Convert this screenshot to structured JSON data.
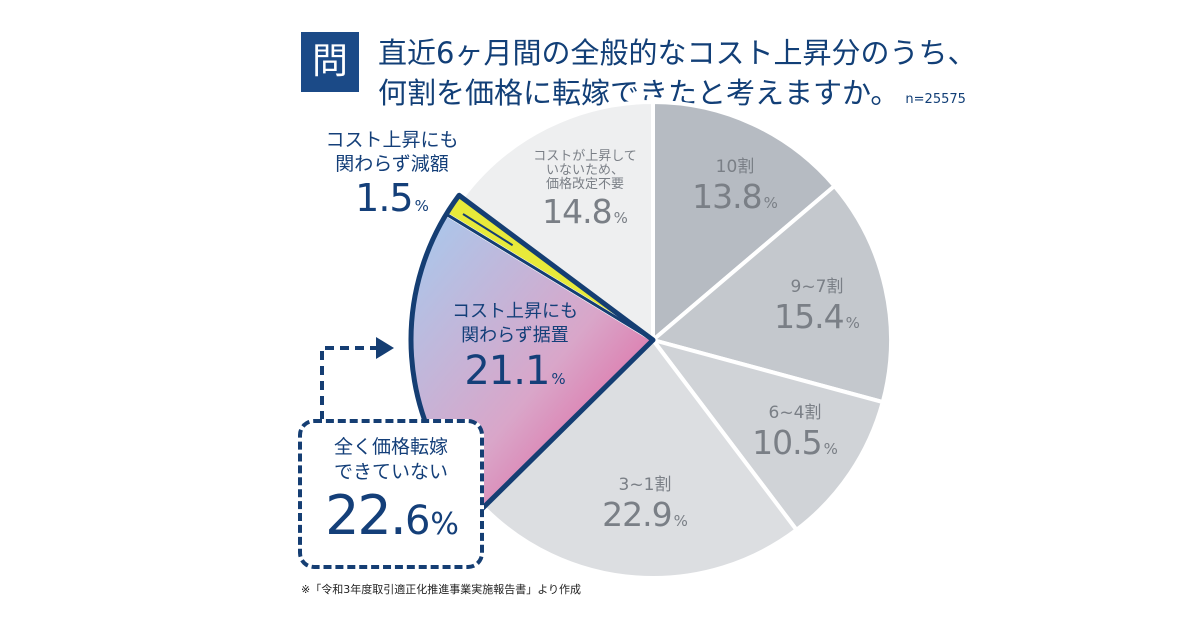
{
  "question": {
    "badge": "問",
    "line1": "直近6ヶ月間の全般的なコスト上昇分のうち、",
    "line2": "何割を価格に転嫁できたと考えますか。",
    "sample_size": "n=25575"
  },
  "chart_data": {
    "type": "pie",
    "start_angle_deg": 0,
    "direction": "clockwise",
    "slices": [
      {
        "label": "10割",
        "value": 13.8,
        "display": "13.8",
        "color": "#b6bbc2"
      },
      {
        "label": "9~7割",
        "value": 15.4,
        "display": "15.4",
        "color": "#c4c8cd"
      },
      {
        "label": "6~4割",
        "value": 10.5,
        "display": "10.5",
        "color": "#d0d3d7"
      },
      {
        "label": "3~1割",
        "value": 22.9,
        "display": "22.9",
        "color": "#dcdee1"
      },
      {
        "label": "コスト上昇にも関わらず据置",
        "value": 21.1,
        "display": "21.1",
        "color": "gradient-blue-pink"
      },
      {
        "label": "コスト上昇にも関わらず減額",
        "value": 1.5,
        "display": "1.5",
        "color": "#e8ea3a"
      },
      {
        "label": "コストが上昇していないため、価格改定不要",
        "value": 14.8,
        "display": "14.8",
        "color": "#eeeff0"
      }
    ],
    "percent_unit": "%",
    "label_lines": {
      "reduced": [
        "コスト上昇にも",
        "関わらず減額"
      ],
      "kept": [
        "コスト上昇にも",
        "関わらず据置"
      ],
      "no_change": [
        "コストが上昇して",
        "いないため、",
        "価格改定不要"
      ]
    },
    "callout": {
      "label_lines": [
        "全く価格転嫁",
        "できていない"
      ],
      "value_int": "22.",
      "value_dec": "6",
      "unit": "%"
    },
    "colors": {
      "navy": "#153e73",
      "gradient_top": "#a6caee",
      "gradient_bottom": "#e2498e",
      "highlight": "#e8ea3a"
    }
  },
  "footnote": "※「令和3年度取引適正化推進事業実施報告書」より作成"
}
